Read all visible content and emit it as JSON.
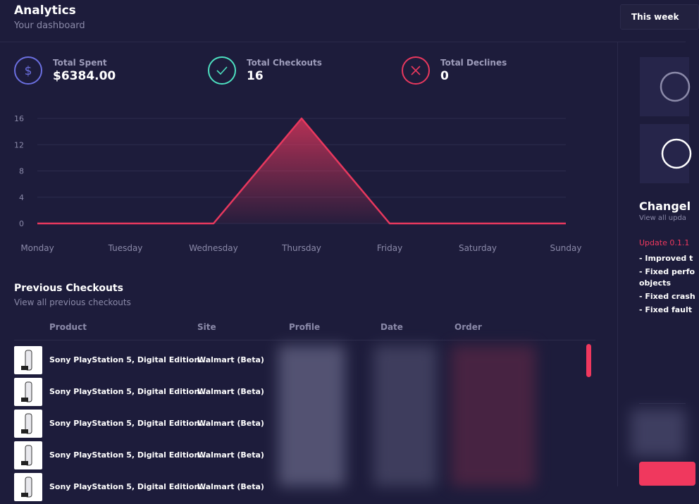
{
  "header": {
    "title": "Analytics",
    "subtitle": "Your dashboard",
    "button": "This week"
  },
  "stats": [
    {
      "label": "Total Spent",
      "value": "$6384.00"
    },
    {
      "label": "Total Checkouts",
      "value": "16"
    },
    {
      "label": "Total Declines",
      "value": "0"
    }
  ],
  "chart_data": {
    "type": "area",
    "categories": [
      "Monday",
      "Tuesday",
      "Wednesday",
      "Thursday",
      "Friday",
      "Saturday",
      "Sunday"
    ],
    "values": [
      0,
      0,
      0,
      16,
      0,
      0,
      0
    ],
    "color": "#e8385e",
    "ylim": [
      0,
      16
    ],
    "yticks": [
      0,
      4,
      8,
      12,
      16
    ],
    "grid": true
  },
  "checkouts": {
    "title": "Previous Checkouts",
    "subtitle": "View all previous checkouts",
    "columns": [
      "Product",
      "Site",
      "Profile",
      "Date",
      "Order"
    ],
    "rows": [
      [
        "Sony PlayStation 5, Digital Edition...",
        "Walmart (Beta)"
      ],
      [
        "Sony PlayStation 5, Digital Edition...",
        "Walmart (Beta)"
      ],
      [
        "Sony PlayStation 5, Digital Edition...",
        "Walmart (Beta)"
      ],
      [
        "Sony PlayStation 5, Digital Edition...",
        "Walmart (Beta)"
      ],
      [
        "Sony PlayStation 5, Digital Edition...",
        "Walmart (Beta)"
      ]
    ]
  },
  "changelog": {
    "title": "Changel",
    "subtitle": "View all upda",
    "version": "Update 0.1.1",
    "items": [
      "- Improved t",
      "- Fixed perfo",
      "objects",
      "- Fixed crash",
      "- Fixed fault"
    ]
  }
}
